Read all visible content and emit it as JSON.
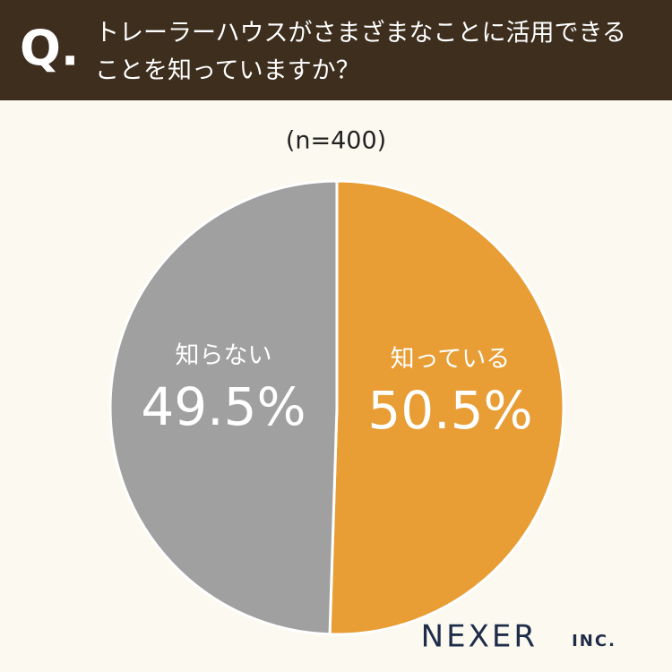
{
  "chart_data": {
    "type": "pie",
    "question_mark": "Q.",
    "title_lines": [
      "トレーラーハウスがさまざまなことに活用できる",
      "ことを知っていますか？"
    ],
    "subtitle": "(n=400)",
    "categories": [
      "知っている",
      "知らない"
    ],
    "values": [
      50.5,
      49.5
    ],
    "value_labels": [
      "50.5%",
      "49.5%"
    ],
    "colors": [
      "#e89d35",
      "#a0a0a0"
    ],
    "brand": "NEXER",
    "brand_suffix": "INC."
  }
}
